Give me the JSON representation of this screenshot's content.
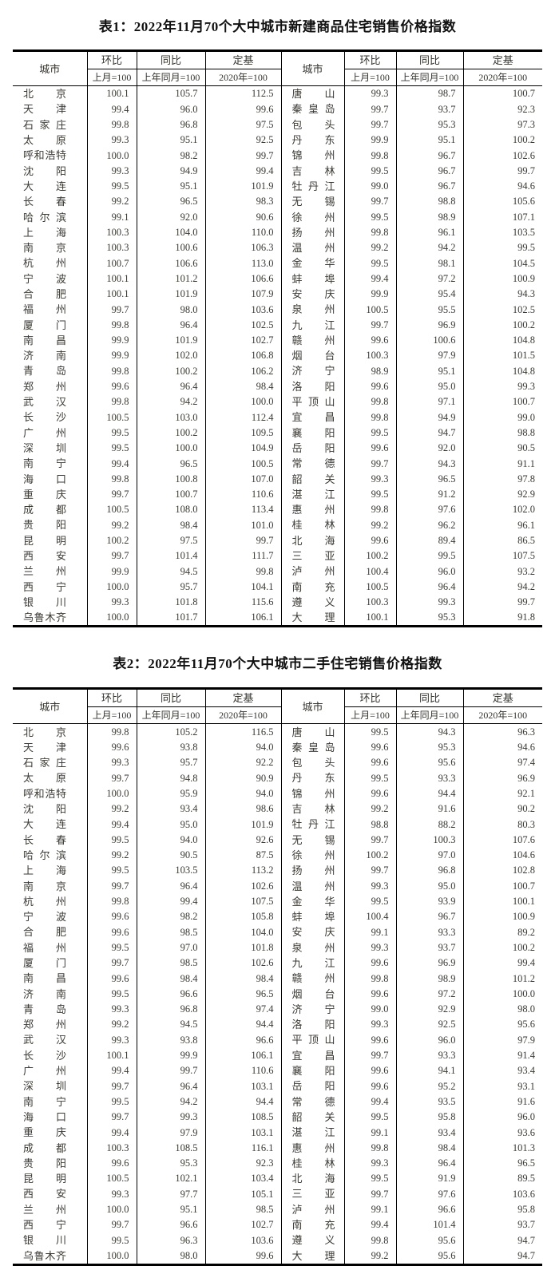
{
  "colors": {
    "background": "#ffffff",
    "border": "#000000",
    "title_text": "#111111",
    "body_text": "#3b3a34"
  },
  "tables": [
    {
      "title": "表1：2022年11月70个大中城市新建商品住宅销售价格指数",
      "header": {
        "city": "城市",
        "mom": "环比",
        "mom_base": "上月=100",
        "yoy": "同比",
        "yoy_base": "上年同月=100",
        "fixed": "定基",
        "fixed_base": "2020年=100"
      },
      "left_rows": [
        [
          "北京",
          "100.1",
          "105.7",
          "112.5"
        ],
        [
          "天津",
          "99.4",
          "96.0",
          "99.6"
        ],
        [
          "石家庄",
          "99.8",
          "96.8",
          "97.5"
        ],
        [
          "太原",
          "99.3",
          "95.1",
          "92.5"
        ],
        [
          "呼和浩特",
          "100.0",
          "98.2",
          "99.7"
        ],
        [
          "沈阳",
          "99.3",
          "94.9",
          "99.4"
        ],
        [
          "大连",
          "99.5",
          "95.1",
          "101.9"
        ],
        [
          "长春",
          "99.2",
          "96.5",
          "98.3"
        ],
        [
          "哈尔滨",
          "99.1",
          "92.0",
          "90.6"
        ],
        [
          "上海",
          "100.3",
          "104.0",
          "110.0"
        ],
        [
          "南京",
          "100.3",
          "100.6",
          "106.3"
        ],
        [
          "杭州",
          "100.7",
          "106.6",
          "113.0"
        ],
        [
          "宁波",
          "100.1",
          "101.2",
          "106.6"
        ],
        [
          "合肥",
          "100.1",
          "101.9",
          "107.9"
        ],
        [
          "福州",
          "99.7",
          "98.0",
          "103.6"
        ],
        [
          "厦门",
          "99.8",
          "96.4",
          "102.5"
        ],
        [
          "南昌",
          "99.9",
          "101.9",
          "102.7"
        ],
        [
          "济南",
          "99.9",
          "102.0",
          "106.8"
        ],
        [
          "青岛",
          "99.8",
          "100.2",
          "106.2"
        ],
        [
          "郑州",
          "99.6",
          "96.4",
          "98.4"
        ],
        [
          "武汉",
          "99.8",
          "94.2",
          "100.0"
        ],
        [
          "长沙",
          "100.5",
          "103.0",
          "112.4"
        ],
        [
          "广州",
          "99.5",
          "100.2",
          "109.5"
        ],
        [
          "深圳",
          "99.5",
          "100.0",
          "104.9"
        ],
        [
          "南宁",
          "99.4",
          "96.5",
          "100.5"
        ],
        [
          "海口",
          "99.8",
          "100.8",
          "107.0"
        ],
        [
          "重庆",
          "99.7",
          "100.7",
          "110.6"
        ],
        [
          "成都",
          "100.5",
          "108.0",
          "113.4"
        ],
        [
          "贵阳",
          "99.2",
          "98.4",
          "101.0"
        ],
        [
          "昆明",
          "100.2",
          "97.5",
          "99.7"
        ],
        [
          "西安",
          "99.7",
          "101.4",
          "111.7"
        ],
        [
          "兰州",
          "99.9",
          "94.5",
          "99.8"
        ],
        [
          "西宁",
          "100.0",
          "95.7",
          "104.1"
        ],
        [
          "银川",
          "99.3",
          "101.8",
          "115.6"
        ],
        [
          "乌鲁木齐",
          "100.0",
          "101.7",
          "106.1"
        ]
      ],
      "right_rows": [
        [
          "唐山",
          "99.3",
          "98.7",
          "100.7"
        ],
        [
          "秦皇岛",
          "99.7",
          "93.7",
          "92.3"
        ],
        [
          "包头",
          "99.7",
          "95.3",
          "97.3"
        ],
        [
          "丹东",
          "99.9",
          "95.1",
          "100.2"
        ],
        [
          "锦州",
          "99.8",
          "96.7",
          "102.6"
        ],
        [
          "吉林",
          "99.5",
          "96.7",
          "99.7"
        ],
        [
          "牡丹江",
          "99.0",
          "96.7",
          "94.6"
        ],
        [
          "无锡",
          "99.7",
          "98.8",
          "105.6"
        ],
        [
          "徐州",
          "99.5",
          "98.9",
          "107.1"
        ],
        [
          "扬州",
          "99.8",
          "96.1",
          "103.5"
        ],
        [
          "温州",
          "99.2",
          "94.2",
          "99.5"
        ],
        [
          "金华",
          "99.5",
          "98.1",
          "104.5"
        ],
        [
          "蚌埠",
          "99.4",
          "97.2",
          "100.9"
        ],
        [
          "安庆",
          "99.9",
          "95.4",
          "94.3"
        ],
        [
          "泉州",
          "100.5",
          "95.5",
          "102.5"
        ],
        [
          "九江",
          "99.7",
          "96.9",
          "100.2"
        ],
        [
          "赣州",
          "99.6",
          "100.6",
          "104.8"
        ],
        [
          "烟台",
          "100.3",
          "97.9",
          "101.5"
        ],
        [
          "济宁",
          "98.9",
          "95.1",
          "104.8"
        ],
        [
          "洛阳",
          "99.6",
          "95.0",
          "99.3"
        ],
        [
          "平顶山",
          "99.8",
          "97.1",
          "100.7"
        ],
        [
          "宜昌",
          "99.8",
          "94.9",
          "99.0"
        ],
        [
          "襄阳",
          "99.5",
          "94.7",
          "98.8"
        ],
        [
          "岳阳",
          "99.6",
          "92.0",
          "90.5"
        ],
        [
          "常德",
          "99.7",
          "94.3",
          "91.1"
        ],
        [
          "韶关",
          "99.3",
          "96.5",
          "97.8"
        ],
        [
          "湛江",
          "99.5",
          "91.2",
          "92.9"
        ],
        [
          "惠州",
          "99.8",
          "97.6",
          "102.0"
        ],
        [
          "桂林",
          "99.2",
          "96.2",
          "96.1"
        ],
        [
          "北海",
          "99.6",
          "89.4",
          "86.5"
        ],
        [
          "三亚",
          "100.2",
          "99.5",
          "107.5"
        ],
        [
          "泸州",
          "100.4",
          "96.0",
          "93.2"
        ],
        [
          "南充",
          "100.5",
          "96.4",
          "94.2"
        ],
        [
          "遵义",
          "100.3",
          "99.3",
          "99.7"
        ],
        [
          "大理",
          "100.1",
          "95.3",
          "91.8"
        ]
      ]
    },
    {
      "title": "表2：2022年11月70个大中城市二手住宅销售价格指数",
      "header": {
        "city": "城市",
        "mom": "环比",
        "mom_base": "上月=100",
        "yoy": "同比",
        "yoy_base": "上年同月=100",
        "fixed": "定基",
        "fixed_base": "2020年=100"
      },
      "left_rows": [
        [
          "北京",
          "99.8",
          "105.2",
          "116.5"
        ],
        [
          "天津",
          "99.6",
          "93.8",
          "94.0"
        ],
        [
          "石家庄",
          "99.3",
          "95.7",
          "92.2"
        ],
        [
          "太原",
          "99.7",
          "94.8",
          "90.9"
        ],
        [
          "呼和浩特",
          "100.0",
          "95.9",
          "94.0"
        ],
        [
          "沈阳",
          "99.2",
          "93.4",
          "98.6"
        ],
        [
          "大连",
          "99.4",
          "95.0",
          "101.9"
        ],
        [
          "长春",
          "99.5",
          "94.0",
          "92.6"
        ],
        [
          "哈尔滨",
          "99.2",
          "90.5",
          "87.5"
        ],
        [
          "上海",
          "99.5",
          "103.5",
          "113.2"
        ],
        [
          "南京",
          "99.7",
          "96.4",
          "102.6"
        ],
        [
          "杭州",
          "99.8",
          "99.4",
          "107.5"
        ],
        [
          "宁波",
          "99.6",
          "98.2",
          "105.8"
        ],
        [
          "合肥",
          "99.6",
          "98.5",
          "104.0"
        ],
        [
          "福州",
          "99.5",
          "97.0",
          "101.8"
        ],
        [
          "厦门",
          "99.7",
          "98.5",
          "102.6"
        ],
        [
          "南昌",
          "99.6",
          "98.4",
          "98.4"
        ],
        [
          "济南",
          "99.5",
          "96.6",
          "96.5"
        ],
        [
          "青岛",
          "99.3",
          "96.8",
          "97.4"
        ],
        [
          "郑州",
          "99.2",
          "94.5",
          "94.4"
        ],
        [
          "武汉",
          "99.3",
          "93.8",
          "96.6"
        ],
        [
          "长沙",
          "100.1",
          "99.9",
          "106.1"
        ],
        [
          "广州",
          "99.4",
          "99.7",
          "110.6"
        ],
        [
          "深圳",
          "99.7",
          "96.4",
          "103.1"
        ],
        [
          "南宁",
          "99.5",
          "94.2",
          "94.4"
        ],
        [
          "海口",
          "99.7",
          "99.3",
          "108.5"
        ],
        [
          "重庆",
          "99.4",
          "97.9",
          "103.1"
        ],
        [
          "成都",
          "100.3",
          "108.5",
          "116.1"
        ],
        [
          "贵阳",
          "99.6",
          "95.3",
          "92.3"
        ],
        [
          "昆明",
          "100.5",
          "102.1",
          "103.4"
        ],
        [
          "西安",
          "99.3",
          "97.7",
          "105.1"
        ],
        [
          "兰州",
          "100.0",
          "95.1",
          "98.5"
        ],
        [
          "西宁",
          "99.7",
          "96.6",
          "102.7"
        ],
        [
          "银川",
          "99.5",
          "96.3",
          "103.6"
        ],
        [
          "乌鲁木齐",
          "100.0",
          "98.0",
          "99.6"
        ]
      ],
      "right_rows": [
        [
          "唐山",
          "99.5",
          "94.3",
          "96.3"
        ],
        [
          "秦皇岛",
          "99.6",
          "95.3",
          "94.6"
        ],
        [
          "包头",
          "99.6",
          "95.6",
          "97.4"
        ],
        [
          "丹东",
          "99.5",
          "93.3",
          "96.9"
        ],
        [
          "锦州",
          "99.6",
          "94.4",
          "92.1"
        ],
        [
          "吉林",
          "99.2",
          "91.6",
          "90.2"
        ],
        [
          "牡丹江",
          "98.8",
          "88.2",
          "80.3"
        ],
        [
          "无锡",
          "99.7",
          "100.3",
          "107.6"
        ],
        [
          "徐州",
          "100.2",
          "97.0",
          "104.6"
        ],
        [
          "扬州",
          "99.7",
          "96.8",
          "102.8"
        ],
        [
          "温州",
          "99.3",
          "95.0",
          "100.7"
        ],
        [
          "金华",
          "99.5",
          "93.9",
          "100.1"
        ],
        [
          "蚌埠",
          "100.4",
          "96.7",
          "100.9"
        ],
        [
          "安庆",
          "99.1",
          "93.3",
          "89.2"
        ],
        [
          "泉州",
          "99.3",
          "93.7",
          "100.2"
        ],
        [
          "九江",
          "99.6",
          "96.9",
          "99.4"
        ],
        [
          "赣州",
          "99.8",
          "98.9",
          "101.2"
        ],
        [
          "烟台",
          "99.6",
          "97.2",
          "100.0"
        ],
        [
          "济宁",
          "99.0",
          "92.9",
          "98.0"
        ],
        [
          "洛阳",
          "99.3",
          "92.5",
          "95.6"
        ],
        [
          "平顶山",
          "99.6",
          "96.0",
          "97.9"
        ],
        [
          "宜昌",
          "99.7",
          "93.3",
          "91.4"
        ],
        [
          "襄阳",
          "99.6",
          "94.1",
          "93.4"
        ],
        [
          "岳阳",
          "99.6",
          "95.2",
          "93.1"
        ],
        [
          "常德",
          "99.4",
          "93.5",
          "91.6"
        ],
        [
          "韶关",
          "99.5",
          "95.8",
          "96.0"
        ],
        [
          "湛江",
          "99.1",
          "93.4",
          "93.6"
        ],
        [
          "惠州",
          "99.8",
          "98.4",
          "101.3"
        ],
        [
          "桂林",
          "99.3",
          "96.4",
          "96.5"
        ],
        [
          "北海",
          "99.5",
          "91.9",
          "89.5"
        ],
        [
          "三亚",
          "99.7",
          "97.6",
          "103.6"
        ],
        [
          "泸州",
          "99.1",
          "96.6",
          "95.8"
        ],
        [
          "南充",
          "99.4",
          "101.4",
          "93.7"
        ],
        [
          "遵义",
          "99.8",
          "95.6",
          "94.7"
        ],
        [
          "大理",
          "99.2",
          "95.6",
          "94.7"
        ]
      ]
    }
  ]
}
